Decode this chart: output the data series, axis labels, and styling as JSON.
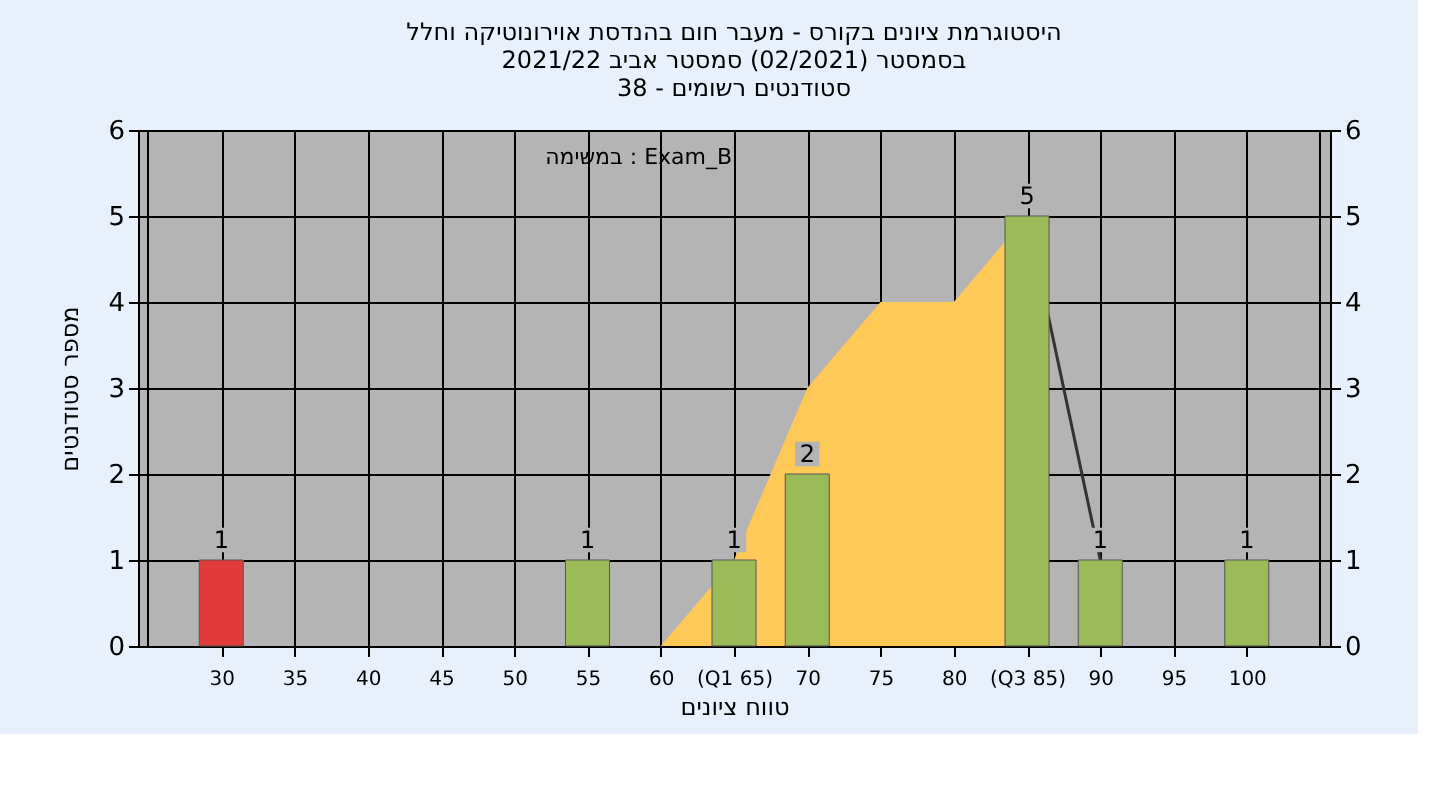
{
  "chart_data": {
    "type": "bar",
    "title": [
      "היסטוגרמת ציונים בקורס - מעבר חום בהנדסת אוירונוטיקה וחלל",
      "בסמסטר  (02/2021)  סמסטר אביב 2021/22",
      "סטודנטים רשומים - 38"
    ],
    "xlabel": "טווח ציונים",
    "ylabel": "מספר סטודנטים",
    "annotations": [
      "במשימה : Exam_B"
    ],
    "xlim": [
      25,
      105
    ],
    "xticks": [
      30,
      35,
      40,
      45,
      50,
      55,
      60,
      {
        "value": 65,
        "label": "(Q1 65)"
      },
      70,
      75,
      80,
      {
        "value": 85,
        "label": "(Q3 85)"
      },
      90,
      95,
      100
    ],
    "ylim": [
      0,
      6
    ],
    "yticks": [
      0,
      1,
      2,
      3,
      4,
      5,
      6
    ],
    "y2lim": [
      0,
      6
    ],
    "y2ticks": [
      0,
      1,
      2,
      3,
      4,
      5,
      6
    ],
    "grid": true,
    "series": [
      {
        "type": "area",
        "color": "#fec957",
        "x": [
          60,
          65,
          70,
          75,
          80,
          85
        ],
        "values": [
          0,
          1,
          3,
          4,
          4,
          5
        ]
      },
      {
        "type": "line",
        "color": "#333333",
        "x": [
          85,
          90
        ],
        "values": [
          5,
          1
        ]
      },
      {
        "x": [
          30,
          55,
          65,
          70,
          85,
          90,
          100
        ],
        "values": [
          1,
          1,
          1,
          2,
          5,
          1,
          1
        ],
        "value_labels": [
          "1",
          "1",
          "1",
          "2",
          "5",
          "1",
          "1"
        ],
        "colors": [
          "#e03a3a",
          "#9bbb59",
          "#9bbb59",
          "#9bbb59",
          "#9bbb59",
          "#9bbb59",
          "#9bbb59"
        ]
      }
    ]
  }
}
